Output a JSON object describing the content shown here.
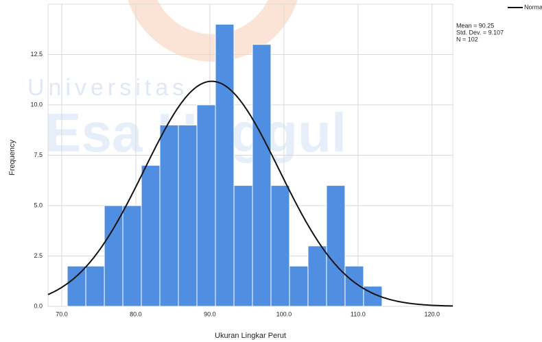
{
  "chart_data": {
    "type": "histogram",
    "x_label": "Ukuran Lingkar Perut",
    "y_label": "Frequency",
    "bins": [
      70.75,
      73.25,
      75.75,
      78.25,
      80.75,
      83.25,
      85.75,
      88.25,
      90.75,
      93.25,
      95.75,
      98.25,
      100.75,
      103.25,
      105.75,
      108.25,
      110.75,
      113.25
    ],
    "values": [
      2,
      2,
      5,
      5,
      7,
      9,
      9,
      10,
      14,
      6,
      13,
      6,
      2,
      3,
      6,
      2,
      1
    ],
    "color": "#4f8ee0",
    "xlim": [
      68.15,
      122.8
    ],
    "xticks": [
      {
        "value": 70,
        "label": "70.0"
      },
      {
        "value": 80,
        "label": "80.0"
      },
      {
        "value": 90,
        "label": "90.0"
      },
      {
        "value": 100,
        "label": "100.0"
      },
      {
        "value": 110,
        "label": "110.0"
      },
      {
        "value": 120,
        "label": "120.0"
      }
    ],
    "ylim": [
      0,
      15
    ],
    "yticks": [
      {
        "value": 0,
        "label": "0.0"
      },
      2.5,
      {
        "value": 5,
        "label": "5.0"
      },
      7.5,
      {
        "value": 10,
        "label": "10.0"
      },
      12.5
    ],
    "grid": true,
    "normal_curve": {
      "name": "Normal",
      "color": "#111111",
      "mean": 90.25,
      "std_dev": 9.107,
      "n": 102,
      "labels": [
        "Mean = 90.25",
        "Std. Dev. = 9.107",
        "N = 102"
      ]
    },
    "watermark": [
      "Universitas",
      "Esa Unggul"
    ]
  }
}
